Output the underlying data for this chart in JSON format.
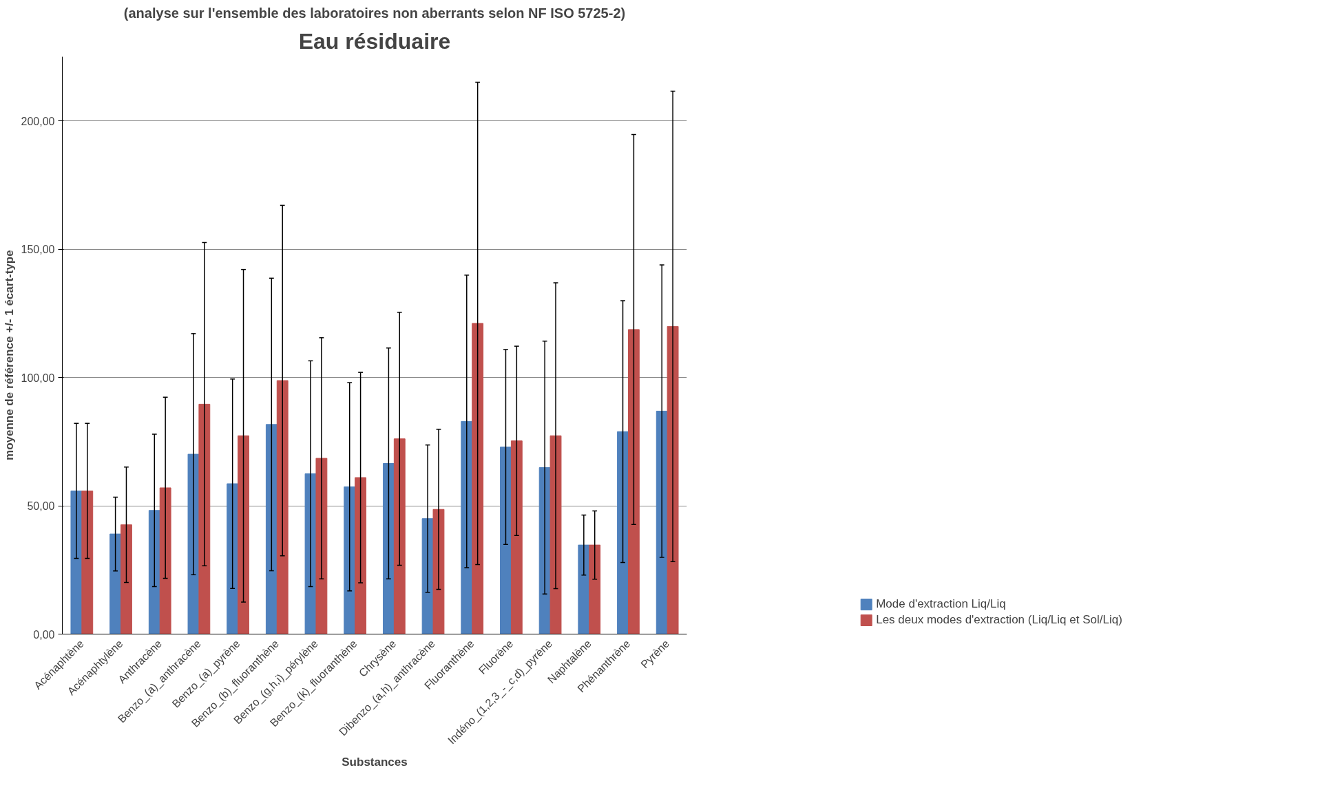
{
  "chart_data": {
    "type": "bar",
    "title": "Eau résiduaire",
    "subtitle": "(analyse sur l'ensemble des laboratoires non aberrants selon NF ISO 5725-2)",
    "xlabel": "Substances",
    "ylabel": "moyenne de référence    +/-    1 écart-type",
    "categories": [
      "Acénaphtène",
      "Acénaphtylène",
      "Anthracène",
      "Benzo_(a)_anthracène",
      "Benzo_(a)_pyrène",
      "Benzo_(b)_fluoranthène",
      "Benzo_(g,h,i)_pérylène",
      "Benzo_(k)_fluoranthène",
      "Chrysène",
      "Dibenzo_(a,h)_anthracène",
      "Fluoranthène",
      "Fluorène",
      "Indéno_(1,2,3_-_c,d)_pyrène",
      "Naphtalène",
      "Phénanthrène",
      "Pyrène"
    ],
    "series": [
      {
        "name": "Mode d'extraction Liq/Liq",
        "color": "#4f81bd",
        "values": [
          55.8,
          39.0,
          48.2,
          70.1,
          58.6,
          81.7,
          62.5,
          57.4,
          66.5,
          45.0,
          82.9,
          72.9,
          64.9,
          34.7,
          78.9,
          86.9
        ],
        "errors": [
          26.3,
          14.4,
          29.7,
          47,
          40.8,
          57,
          44,
          40.6,
          45,
          28.7,
          57,
          38,
          49.3,
          11.7,
          51,
          57
        ]
      },
      {
        "name": "Les deux modes d'extraction (Liq/Liq et Sol/Liq)",
        "color": "#c0504d",
        "values": [
          55.8,
          42.6,
          57.0,
          89.6,
          77.3,
          98.8,
          68.5,
          61.0,
          76.1,
          48.6,
          121.1,
          75.3,
          77.3,
          34.7,
          118.7,
          119.9
        ],
        "errors": [
          26.3,
          22.5,
          35.3,
          63,
          64.8,
          68.3,
          47,
          41,
          49.3,
          31.2,
          94,
          36.9,
          59.6,
          13.3,
          76,
          91.7
        ]
      }
    ],
    "ylim": [
      0,
      225
    ],
    "yticks": [
      {
        "value": 0,
        "label": "0,00"
      },
      {
        "value": 50,
        "label": "50,00"
      },
      {
        "value": 100,
        "label": "100,00"
      },
      {
        "value": 150,
        "label": "150,00"
      },
      {
        "value": 200,
        "label": "200,00"
      }
    ],
    "grid": "y",
    "legend": "bottom right"
  }
}
